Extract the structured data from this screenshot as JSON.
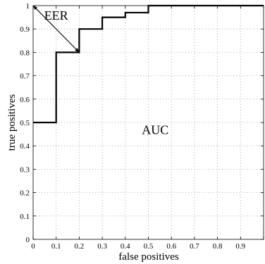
{
  "chart_data": {
    "type": "line",
    "xlabel": "false positives",
    "ylabel": "true positives",
    "xlim": [
      0,
      1
    ],
    "ylim": [
      0,
      1
    ],
    "grid": true,
    "x_ticks": [
      "0",
      "0.1",
      "0.2",
      "0.3",
      "0.4",
      "0.5",
      "0.6",
      "0.7",
      "0.8",
      "0.9"
    ],
    "y_ticks": [
      "0",
      "0.1",
      "0.2",
      "0.3",
      "0.4",
      "0.5",
      "0.6",
      "0.7",
      "0.8",
      "0.9",
      "1"
    ],
    "series": [
      {
        "x": [
          0,
          0.1,
          0.1,
          0.2,
          0.2,
          0.3,
          0.3,
          0.4,
          0.4,
          0.5,
          0.5,
          1.0
        ],
        "y": [
          0.5,
          0.5,
          0.8,
          0.8,
          0.9,
          0.9,
          0.95,
          0.95,
          0.97,
          0.97,
          1.0,
          1.0
        ]
      }
    ],
    "annotations": [
      {
        "text": "EER",
        "x": 0.1,
        "y": 0.94
      },
      {
        "text": "AUC",
        "x": 0.53,
        "y": 0.45
      }
    ],
    "arrows": [
      {
        "from": [
          0.2,
          0.8
        ],
        "to": [
          0,
          1
        ]
      },
      {
        "from": [
          0,
          1
        ],
        "to": [
          0.2,
          0.8
        ]
      }
    ]
  }
}
